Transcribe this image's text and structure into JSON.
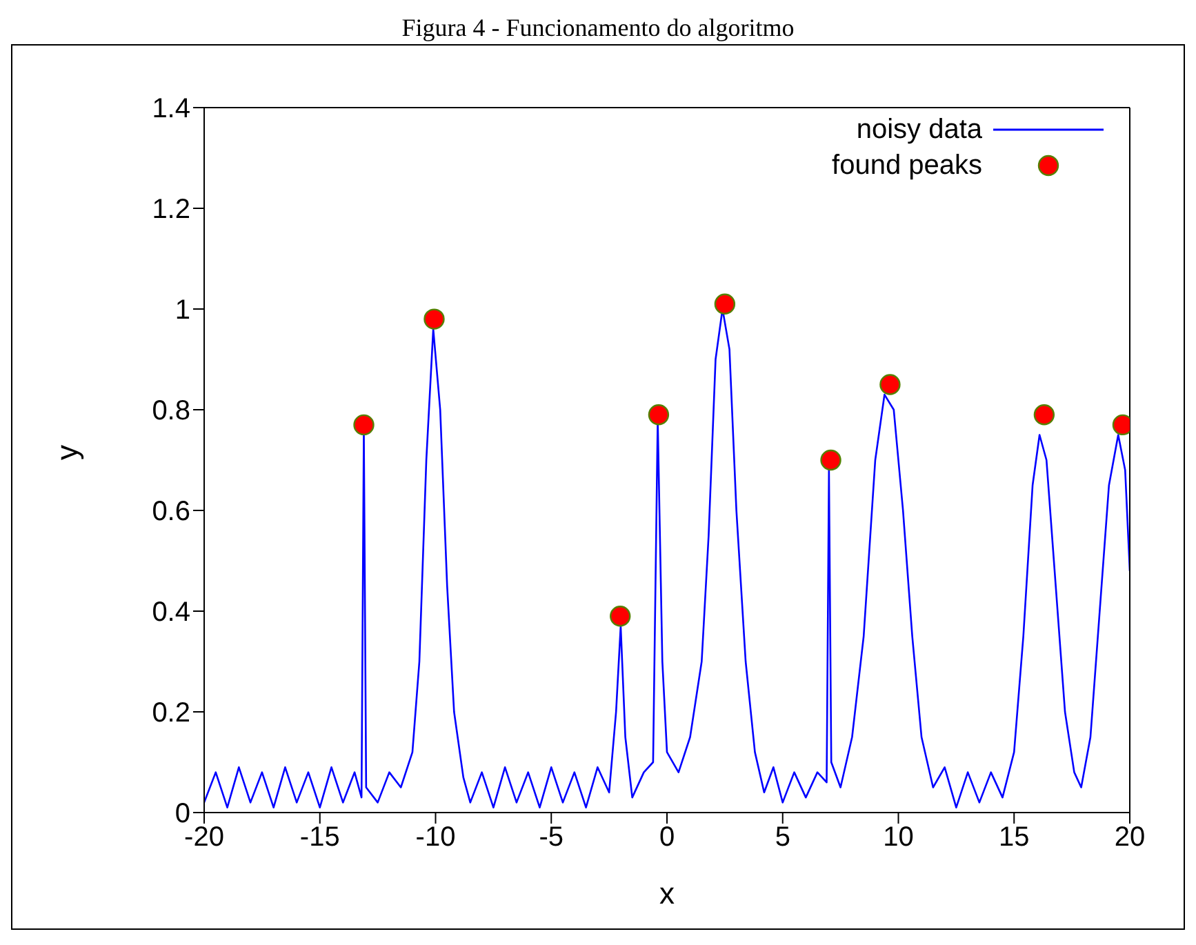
{
  "chart_data": {
    "type": "line",
    "title": "Figura 4 - Funcionamento do algoritmo",
    "xlabel": "x",
    "ylabel": "y",
    "xlim": [
      -20,
      20
    ],
    "xticks": [
      -20,
      -15,
      -10,
      -5,
      0,
      5,
      10,
      15,
      20
    ],
    "ylim": [
      0,
      1.4
    ],
    "yticks": [
      0,
      0.2,
      0.4,
      0.6,
      0.8,
      1,
      1.2,
      1.4
    ],
    "legend": "top right",
    "series": [
      {
        "name": "noisy data",
        "color": "#0000ff",
        "marker": "none",
        "x": [
          -20,
          -19.5,
          -19,
          -18.5,
          -18,
          -17.5,
          -17,
          -16.5,
          -16,
          -15.5,
          -15,
          -14.5,
          -14,
          -13.5,
          -13.2,
          -13.1,
          -13,
          -12.5,
          -12,
          -11.5,
          -11,
          -10.7,
          -10.4,
          -10.1,
          -9.8,
          -9.5,
          -9.2,
          -8.8,
          -8.5,
          -8,
          -7.5,
          -7,
          -6.5,
          -6,
          -5.5,
          -5,
          -4.5,
          -4,
          -3.5,
          -3,
          -2.5,
          -2.2,
          -2,
          -1.8,
          -1.5,
          -1,
          -0.6,
          -0.4,
          -0.2,
          0,
          0.5,
          1,
          1.5,
          1.8,
          2.1,
          2.4,
          2.7,
          3,
          3.4,
          3.8,
          4.2,
          4.6,
          5,
          5.5,
          6,
          6.5,
          6.9,
          7,
          7.1,
          7.5,
          8,
          8.5,
          9,
          9.4,
          9.8,
          10.2,
          10.6,
          11,
          11.5,
          12,
          12.5,
          13,
          13.5,
          14,
          14.5,
          15,
          15.4,
          15.8,
          16.1,
          16.4,
          16.8,
          17.2,
          17.6,
          17.9,
          18.3,
          18.7,
          19.1,
          19.5,
          19.8,
          20
        ],
        "values": [
          0.02,
          0.08,
          0.01,
          0.09,
          0.02,
          0.08,
          0.01,
          0.09,
          0.02,
          0.08,
          0.01,
          0.09,
          0.02,
          0.08,
          0.03,
          0.76,
          0.05,
          0.02,
          0.08,
          0.05,
          0.12,
          0.3,
          0.7,
          0.96,
          0.8,
          0.45,
          0.2,
          0.07,
          0.02,
          0.08,
          0.01,
          0.09,
          0.02,
          0.08,
          0.01,
          0.09,
          0.02,
          0.08,
          0.01,
          0.09,
          0.04,
          0.2,
          0.37,
          0.15,
          0.03,
          0.08,
          0.1,
          0.78,
          0.3,
          0.12,
          0.08,
          0.15,
          0.3,
          0.55,
          0.9,
          1.0,
          0.92,
          0.6,
          0.3,
          0.12,
          0.04,
          0.09,
          0.02,
          0.08,
          0.03,
          0.08,
          0.06,
          0.68,
          0.1,
          0.05,
          0.15,
          0.35,
          0.7,
          0.83,
          0.8,
          0.6,
          0.35,
          0.15,
          0.05,
          0.09,
          0.01,
          0.08,
          0.02,
          0.08,
          0.03,
          0.12,
          0.35,
          0.65,
          0.75,
          0.7,
          0.45,
          0.2,
          0.08,
          0.05,
          0.15,
          0.4,
          0.65,
          0.75,
          0.68,
          0.48
        ]
      },
      {
        "name": "found peaks",
        "type": "scatter",
        "color": "#ff0000",
        "marker": "circle",
        "x": [
          -13.1,
          -10.06,
          -2.02,
          -0.36,
          2.5,
          7.08,
          9.64,
          16.3,
          19.7
        ],
        "values": [
          0.77,
          0.98,
          0.39,
          0.79,
          1.01,
          0.7,
          0.85,
          0.79,
          0.77
        ]
      }
    ]
  }
}
